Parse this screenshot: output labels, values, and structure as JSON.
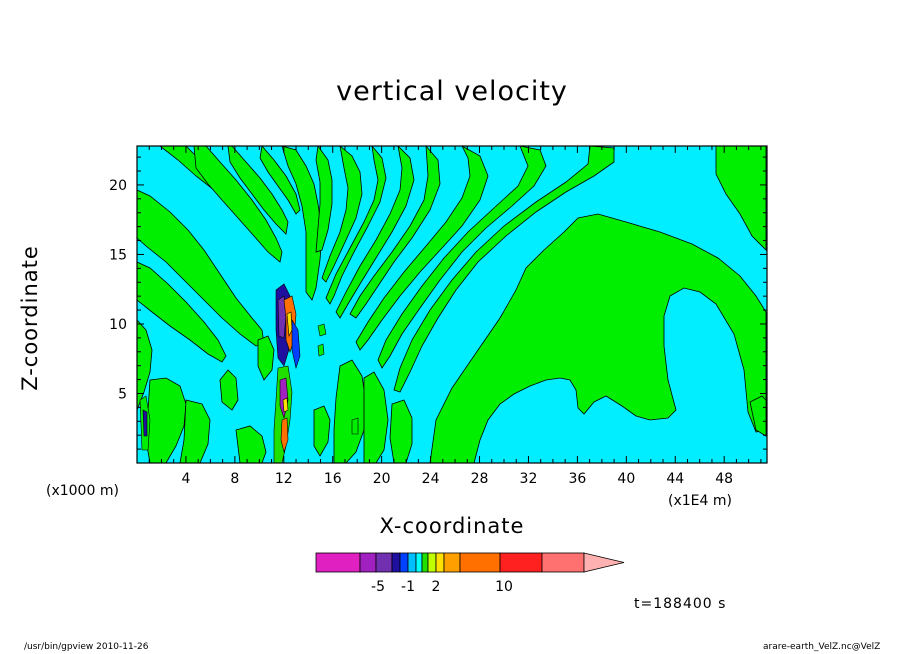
{
  "chart_data": {
    "type": "heatmap",
    "title": "vertical velocity",
    "xlabel": "X-coordinate",
    "ylabel": "Z-coordinate",
    "x_unit_label": "(x1000 m)",
    "x_scale_label": "(x1E4 m)",
    "xlim": [
      0,
      51.5
    ],
    "ylim": [
      0,
      22.8
    ],
    "x_ticks": [
      4,
      8,
      12,
      16,
      20,
      24,
      28,
      32,
      36,
      40,
      44,
      48
    ],
    "y_ticks": [
      5,
      10,
      15,
      20
    ],
    "colorbar": {
      "tick_labels": [
        "-5",
        "-1",
        "2",
        "10"
      ],
      "tick_values": [
        -5,
        -1,
        2,
        10
      ],
      "colors": [
        "#e020c0",
        "#a020c0",
        "#7030b0",
        "#2010a0",
        "#0040ff",
        "#00c0ff",
        "#00ffff",
        "#20e000",
        "#c0ff00",
        "#ffe000",
        "#ffa000",
        "#ff7000",
        "#ff2020",
        "#ff7070",
        "#ffb0b0"
      ]
    },
    "background_color": "#00eeff",
    "positive_region_color": "#00ee00"
  },
  "timestamp": "t=188400 s",
  "footer": {
    "left": "/usr/bin/gpview   2010-11-26",
    "right": "arare-earth_VelZ.nc@VelZ"
  }
}
